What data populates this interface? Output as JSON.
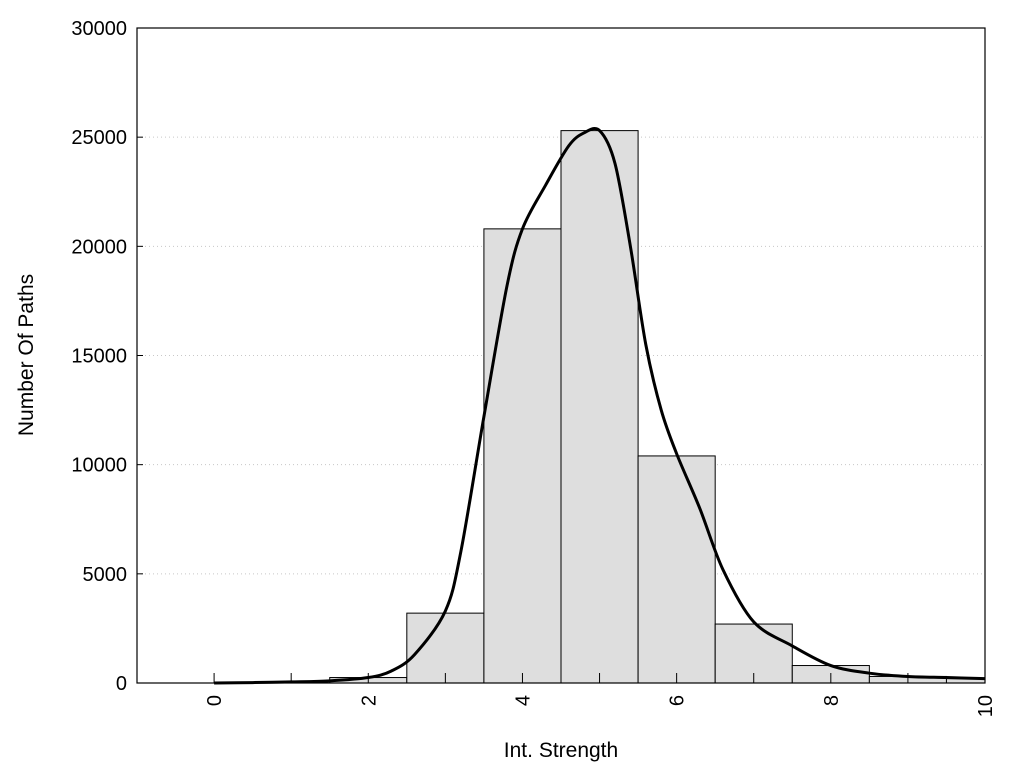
{
  "chart_data": {
    "type": "bar",
    "xlabel": "Int. Strength",
    "ylabel": "Number Of Paths",
    "xlim": [
      -1,
      10
    ],
    "ylim": [
      0,
      30000
    ],
    "xticks": [
      0,
      2,
      4,
      6,
      8,
      10
    ],
    "yticks": [
      0,
      5000,
      10000,
      15000,
      20000,
      25000,
      30000
    ],
    "grid": true,
    "bin_width": 1,
    "bins": [
      {
        "center": 0,
        "value": 0
      },
      {
        "center": 1,
        "value": 0
      },
      {
        "center": 2,
        "value": 250
      },
      {
        "center": 3,
        "value": 3200
      },
      {
        "center": 4,
        "value": 20800
      },
      {
        "center": 5,
        "value": 25300
      },
      {
        "center": 6,
        "value": 10400
      },
      {
        "center": 7,
        "value": 2700
      },
      {
        "center": 8,
        "value": 800
      },
      {
        "center": 9,
        "value": 300
      },
      {
        "center": 10,
        "value": 200
      }
    ],
    "fit_curve": {
      "x": [
        0,
        0.5,
        1,
        1.5,
        2,
        2.3,
        2.6,
        3,
        3.2,
        3.5,
        3.8,
        4,
        4.3,
        4.6,
        4.8,
        5,
        5.2,
        5.4,
        5.6,
        5.8,
        6,
        6.3,
        6.6,
        7,
        7.5,
        8,
        8.5,
        9,
        9.5,
        10
      ],
      "y": [
        0,
        20,
        50,
        100,
        250,
        550,
        1300,
        3300,
        6000,
        12200,
        18200,
        20800,
        22800,
        24600,
        25200,
        25300,
        23800,
        20000,
        15500,
        12500,
        10500,
        8000,
        5200,
        2800,
        1700,
        800,
        450,
        300,
        250,
        200
      ]
    }
  }
}
